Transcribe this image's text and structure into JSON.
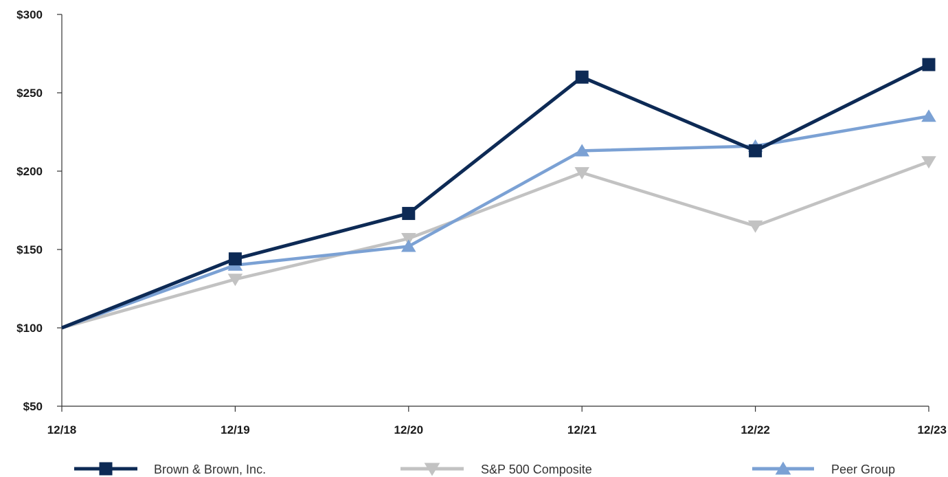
{
  "chart_data": {
    "type": "line",
    "title": "",
    "xlabel": "",
    "ylabel": "",
    "categories": [
      "12/18",
      "12/19",
      "12/20",
      "12/21",
      "12/22",
      "12/23"
    ],
    "ylim": [
      50,
      300
    ],
    "yticks": [
      50,
      100,
      150,
      200,
      250,
      300
    ],
    "ytick_labels": [
      "$50",
      "$100",
      "$150",
      "$200",
      "$250",
      "$300"
    ],
    "grid": false,
    "legend_position": "bottom",
    "series": [
      {
        "name": "Brown & Brown, Inc.",
        "values": [
          100,
          144,
          173,
          260,
          213,
          268
        ],
        "color": "#0d2a55",
        "marker": "square"
      },
      {
        "name": "S&P 500 Composite",
        "values": [
          100,
          131,
          157,
          199,
          165,
          206
        ],
        "color": "#c2c2c2",
        "marker": "triangle-down"
      },
      {
        "name": "Peer Group",
        "values": [
          100,
          140,
          152,
          213,
          216,
          235
        ],
        "color": "#7ba1d4",
        "marker": "triangle-up"
      }
    ]
  }
}
